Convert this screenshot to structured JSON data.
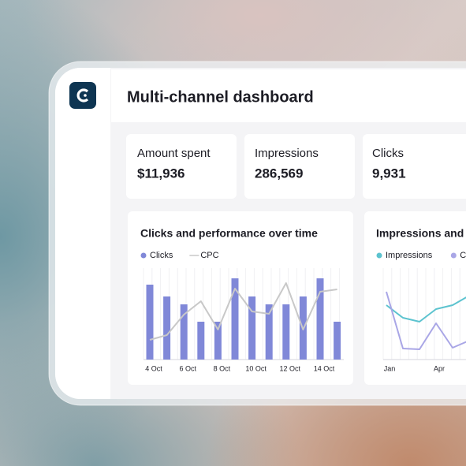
{
  "header": {
    "title": "Multi-channel dashboard"
  },
  "kpis": [
    {
      "label": "Amount spent",
      "value": "$11,936"
    },
    {
      "label": "Impressions",
      "value": "286,569"
    },
    {
      "label": "Clicks",
      "value": "9,931"
    }
  ],
  "chart_data": [
    {
      "type": "bar",
      "title": "Clicks and performance over time",
      "categories": [
        "4 Oct",
        null,
        "6 Oct",
        null,
        "8 Oct",
        null,
        "10 Oct",
        null,
        "12 Oct",
        null,
        "14 Oct",
        null
      ],
      "series": [
        {
          "name": "Clicks",
          "type": "bar",
          "color": "#8088d8",
          "values": [
            95,
            80,
            70,
            48,
            48,
            103,
            80,
            70,
            70,
            80,
            103,
            48
          ]
        },
        {
          "name": "CPC",
          "type": "line",
          "color": "#c8c8c8",
          "values": [
            25,
            31,
            57,
            74,
            38,
            90,
            61,
            58,
            97,
            38,
            86,
            89
          ]
        }
      ],
      "ylim": [
        0,
        116
      ]
    },
    {
      "type": "line",
      "title": "Impressions and",
      "categories": [
        "Jan",
        null,
        null,
        "Apr",
        null,
        null
      ],
      "series": [
        {
          "name": "Impressions",
          "type": "line",
          "color": "#5cc3cf",
          "values": [
            69,
            53,
            48,
            64,
            69,
            81
          ]
        },
        {
          "name": "Clicks",
          "type": "line",
          "color": "#a9a6e6",
          "values": [
            86,
            14,
            13,
            46,
            15,
            24
          ]
        }
      ],
      "ylim": [
        0,
        116
      ]
    }
  ]
}
